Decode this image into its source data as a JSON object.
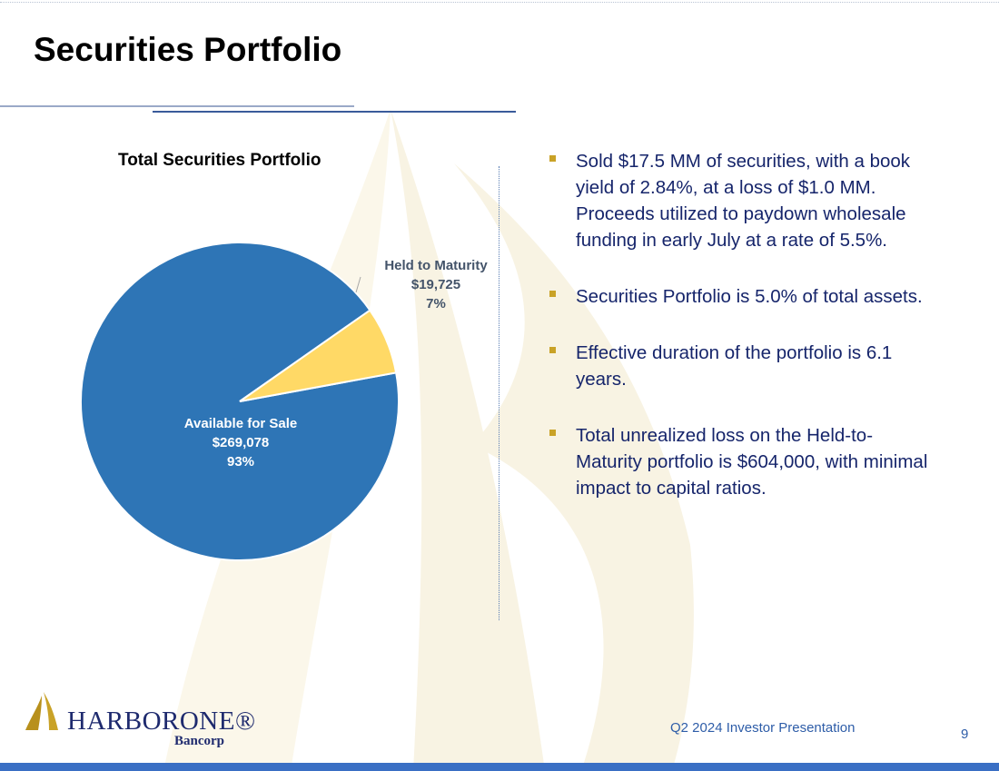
{
  "slide": {
    "title": "Securities Portfolio",
    "footer": "Q2 2024 Investor Presentation",
    "page_number": "9"
  },
  "chart_data": {
    "type": "pie",
    "title": "Total Securities Portfolio",
    "slices": [
      {
        "name": "Held to Maturity",
        "value": 19725,
        "value_label": "$19,725",
        "percent_label": "7%",
        "color": "#ffd966"
      },
      {
        "name": "Available for Sale",
        "value": 269078,
        "value_label": "$269,078",
        "percent_label": "93%",
        "color": "#2e75b6"
      }
    ]
  },
  "bullets": [
    "Sold $17.5 MM of securities, with a book yield of 2.84%, at a loss of $1.0 MM. Proceeds utilized to paydown wholesale funding in early July at a rate of 5.5%.",
    "Securities Portfolio is 5.0% of total assets.",
    "Effective duration of the portfolio is 6.1 years.",
    "Total unrealized loss on the Held-to-Maturity portfolio is $604,000, with minimal impact to capital ratios."
  ],
  "logo": {
    "name": "HARBORONE®",
    "subtitle": "Bancorp"
  },
  "colors": {
    "accent_gold": "#c9a227",
    "bullet_text": "#16256b",
    "footer_blue": "#2e5da8"
  }
}
